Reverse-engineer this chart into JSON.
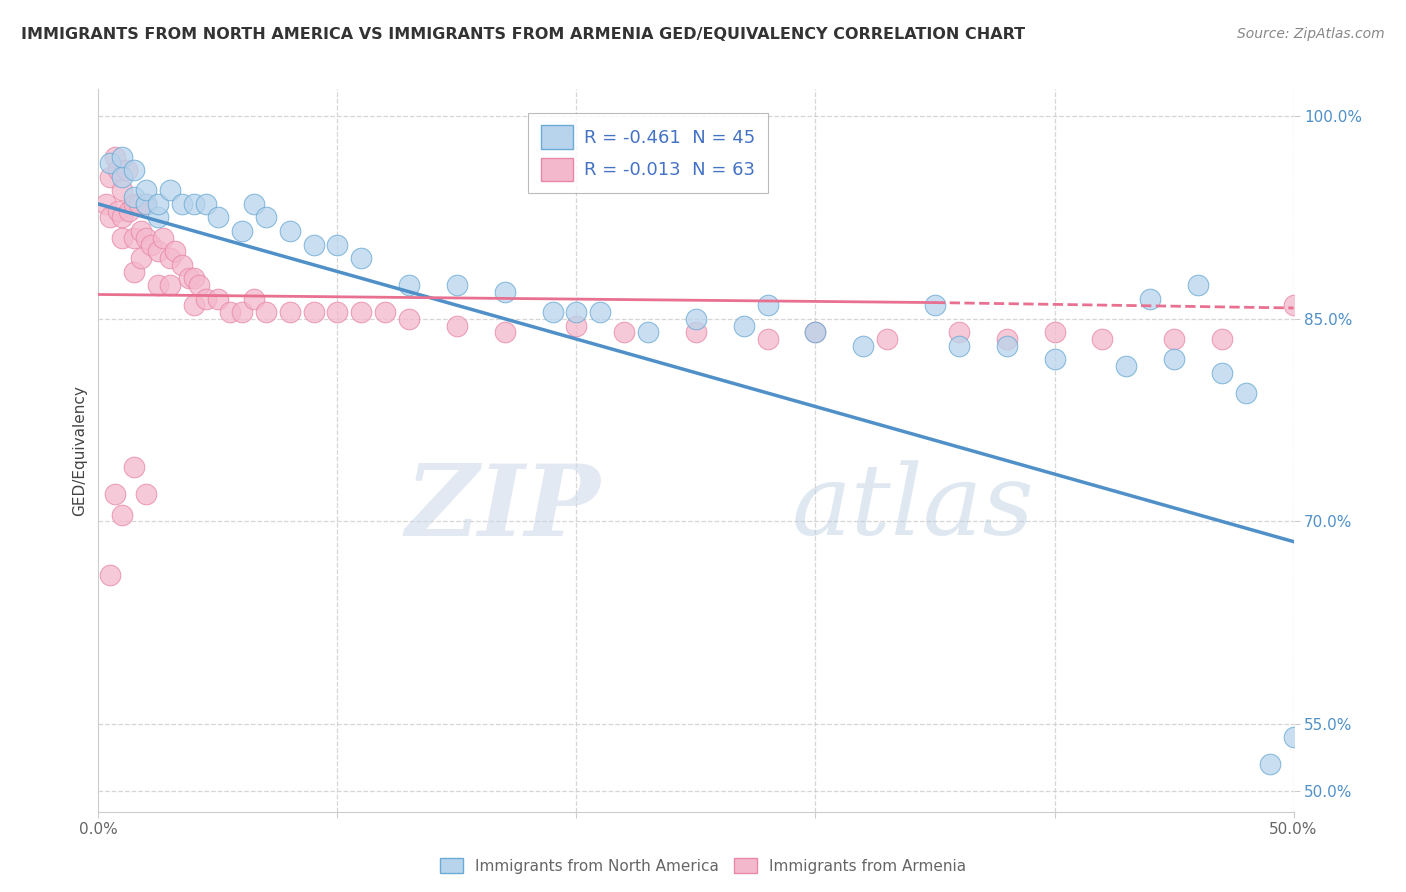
{
  "title": "IMMIGRANTS FROM NORTH AMERICA VS IMMIGRANTS FROM ARMENIA GED/EQUIVALENCY CORRELATION CHART",
  "source": "Source: ZipAtlas.com",
  "ylabel": "GED/Equivalency",
  "xlim": [
    0.0,
    0.5
  ],
  "ylim": [
    0.485,
    1.02
  ],
  "legend_R_blue": "-0.461",
  "legend_N_blue": "45",
  "legend_R_pink": "-0.013",
  "legend_N_pink": "63",
  "blue_fill": "#b8d4ec",
  "blue_edge": "#6aaad4",
  "pink_fill": "#f4b8cc",
  "pink_edge": "#e888a8",
  "blue_line_color": "#5090c8",
  "pink_line_color": "#e87090",
  "watermark_zip": "ZIP",
  "watermark_atlas": "atlas",
  "blue_scatter_x": [
    0.005,
    0.01,
    0.01,
    0.015,
    0.015,
    0.02,
    0.02,
    0.025,
    0.025,
    0.03,
    0.035,
    0.04,
    0.045,
    0.05,
    0.06,
    0.065,
    0.07,
    0.08,
    0.09,
    0.1,
    0.11,
    0.13,
    0.15,
    0.17,
    0.19,
    0.21,
    0.23,
    0.25,
    0.27,
    0.3,
    0.32,
    0.35,
    0.38,
    0.4,
    0.43,
    0.44,
    0.45,
    0.46,
    0.47,
    0.48,
    0.49,
    0.5,
    0.36,
    0.28,
    0.2
  ],
  "blue_scatter_y": [
    0.965,
    0.955,
    0.97,
    0.94,
    0.96,
    0.935,
    0.945,
    0.925,
    0.935,
    0.945,
    0.935,
    0.935,
    0.935,
    0.925,
    0.915,
    0.935,
    0.925,
    0.915,
    0.905,
    0.905,
    0.895,
    0.875,
    0.875,
    0.87,
    0.855,
    0.855,
    0.84,
    0.85,
    0.845,
    0.84,
    0.83,
    0.86,
    0.83,
    0.82,
    0.815,
    0.865,
    0.82,
    0.875,
    0.81,
    0.795,
    0.52,
    0.54,
    0.83,
    0.86,
    0.855
  ],
  "pink_scatter_x": [
    0.003,
    0.005,
    0.005,
    0.007,
    0.008,
    0.008,
    0.01,
    0.01,
    0.01,
    0.012,
    0.013,
    0.015,
    0.015,
    0.015,
    0.017,
    0.018,
    0.018,
    0.02,
    0.02,
    0.022,
    0.025,
    0.025,
    0.027,
    0.03,
    0.03,
    0.032,
    0.035,
    0.038,
    0.04,
    0.04,
    0.042,
    0.045,
    0.05,
    0.055,
    0.06,
    0.065,
    0.07,
    0.08,
    0.09,
    0.1,
    0.11,
    0.12,
    0.13,
    0.15,
    0.17,
    0.2,
    0.22,
    0.25,
    0.28,
    0.3,
    0.33,
    0.36,
    0.38,
    0.4,
    0.42,
    0.45,
    0.47,
    0.5,
    0.005,
    0.007,
    0.01,
    0.015,
    0.02
  ],
  "pink_scatter_y": [
    0.935,
    0.955,
    0.925,
    0.97,
    0.96,
    0.93,
    0.945,
    0.925,
    0.91,
    0.96,
    0.93,
    0.935,
    0.91,
    0.885,
    0.935,
    0.915,
    0.895,
    0.935,
    0.91,
    0.905,
    0.9,
    0.875,
    0.91,
    0.895,
    0.875,
    0.9,
    0.89,
    0.88,
    0.88,
    0.86,
    0.875,
    0.865,
    0.865,
    0.855,
    0.855,
    0.865,
    0.855,
    0.855,
    0.855,
    0.855,
    0.855,
    0.855,
    0.85,
    0.845,
    0.84,
    0.845,
    0.84,
    0.84,
    0.835,
    0.84,
    0.835,
    0.84,
    0.835,
    0.84,
    0.835,
    0.835,
    0.835,
    0.86,
    0.66,
    0.72,
    0.705,
    0.74,
    0.72
  ],
  "blue_line_x0": 0.0,
  "blue_line_x1": 0.5,
  "blue_line_y0": 0.935,
  "blue_line_y1": 0.685,
  "pink_line_x0": 0.0,
  "pink_line_x1": 0.35,
  "pink_line_x1_dash": 0.5,
  "pink_line_y0": 0.868,
  "pink_line_y1": 0.862,
  "pink_line_y1_dash": 0.858
}
